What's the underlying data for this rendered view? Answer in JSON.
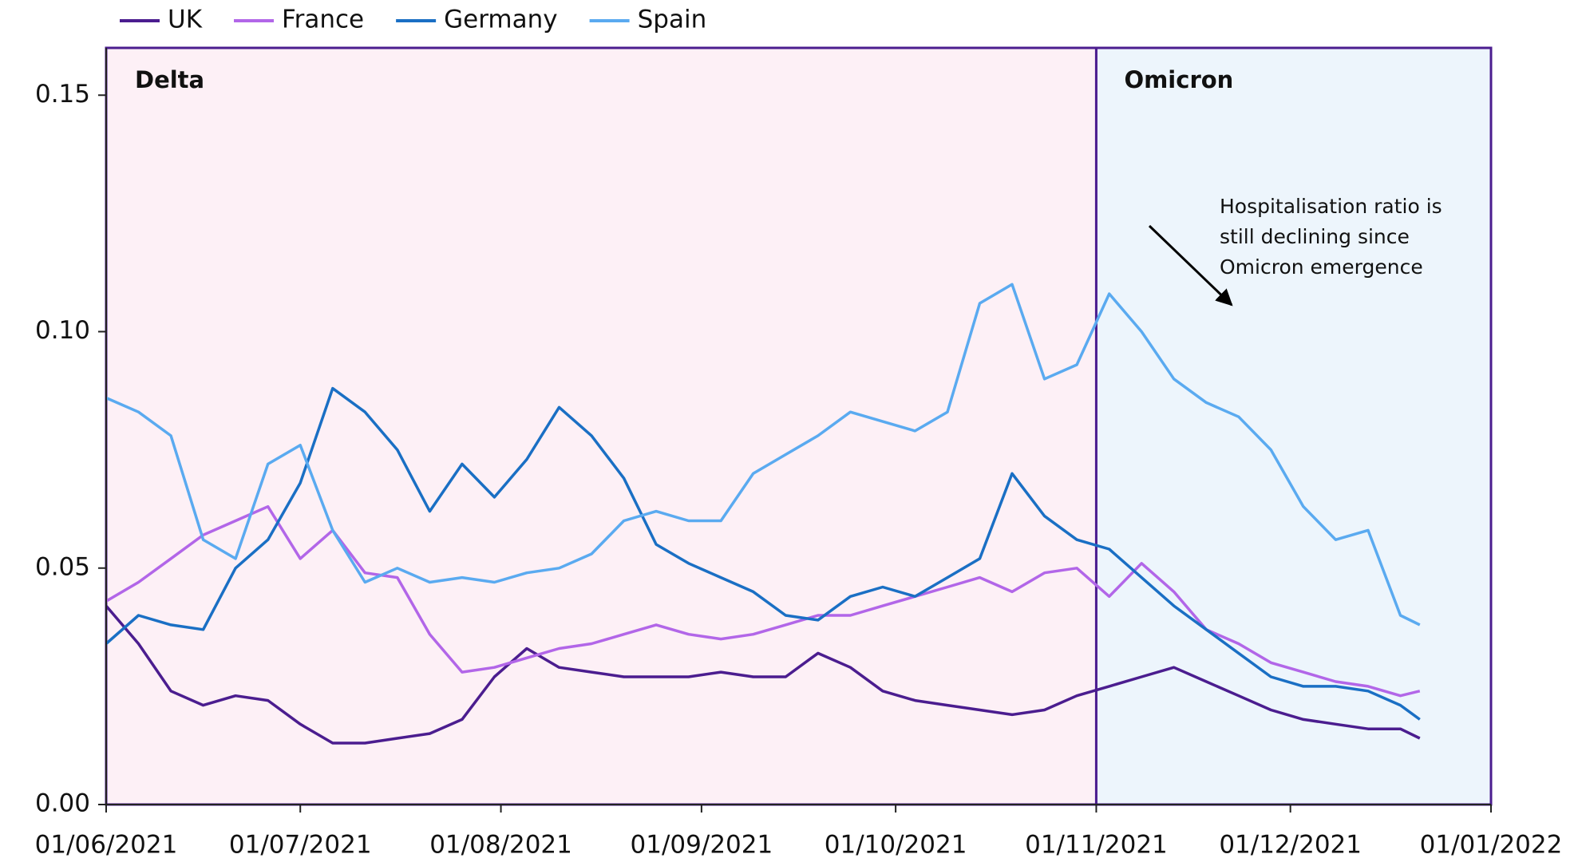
{
  "chart_data": {
    "type": "line",
    "x": [
      "2021-06-01",
      "2021-06-06",
      "2021-06-11",
      "2021-06-16",
      "2021-06-21",
      "2021-06-26",
      "2021-07-01",
      "2021-07-06",
      "2021-07-11",
      "2021-07-16",
      "2021-07-21",
      "2021-07-26",
      "2021-07-31",
      "2021-08-05",
      "2021-08-10",
      "2021-08-15",
      "2021-08-20",
      "2021-08-25",
      "2021-08-30",
      "2021-09-04",
      "2021-09-09",
      "2021-09-14",
      "2021-09-19",
      "2021-09-24",
      "2021-09-29",
      "2021-10-04",
      "2021-10-09",
      "2021-10-14",
      "2021-10-19",
      "2021-10-24",
      "2021-10-29",
      "2021-11-03",
      "2021-11-08",
      "2021-11-13",
      "2021-11-18",
      "2021-11-23",
      "2021-11-28",
      "2021-12-03",
      "2021-12-08",
      "2021-12-13",
      "2021-12-18",
      "2021-12-21"
    ],
    "series": [
      {
        "name": "UK",
        "color": "#4b1d8f",
        "values": [
          0.042,
          0.034,
          0.024,
          0.021,
          0.023,
          0.022,
          0.017,
          0.013,
          0.013,
          0.014,
          0.015,
          0.018,
          0.027,
          0.033,
          0.029,
          0.028,
          0.027,
          0.027,
          0.027,
          0.028,
          0.027,
          0.027,
          0.032,
          0.029,
          0.024,
          0.022,
          0.021,
          0.02,
          0.019,
          0.02,
          0.023,
          0.025,
          0.027,
          0.029,
          0.026,
          0.023,
          0.02,
          0.018,
          0.017,
          0.016,
          0.016,
          0.014
        ]
      },
      {
        "name": "France",
        "color": "#b266e8",
        "values": [
          0.043,
          0.047,
          0.052,
          0.057,
          0.06,
          0.063,
          0.052,
          0.058,
          0.049,
          0.048,
          0.036,
          0.028,
          0.029,
          0.031,
          0.033,
          0.034,
          0.036,
          0.038,
          0.036,
          0.035,
          0.036,
          0.038,
          0.04,
          0.04,
          0.042,
          0.044,
          0.046,
          0.048,
          0.045,
          0.049,
          0.05,
          0.044,
          0.051,
          0.045,
          0.037,
          0.034,
          0.03,
          0.028,
          0.026,
          0.025,
          0.023,
          0.024
        ]
      },
      {
        "name": "Germany",
        "color": "#1a6fc4",
        "values": [
          0.034,
          0.04,
          0.038,
          0.037,
          0.05,
          0.056,
          0.068,
          0.088,
          0.083,
          0.075,
          0.062,
          0.072,
          0.065,
          0.073,
          0.084,
          0.078,
          0.069,
          0.055,
          0.051,
          0.048,
          0.045,
          0.04,
          0.039,
          0.044,
          0.046,
          0.044,
          0.048,
          0.052,
          0.07,
          0.061,
          0.056,
          0.054,
          0.048,
          0.042,
          0.037,
          0.032,
          0.027,
          0.025,
          0.025,
          0.024,
          0.021,
          0.018
        ]
      },
      {
        "name": "Spain",
        "color": "#5aaaf0",
        "values": [
          0.086,
          0.083,
          0.078,
          0.056,
          0.052,
          0.072,
          0.076,
          0.058,
          0.047,
          0.05,
          0.047,
          0.048,
          0.047,
          0.049,
          0.05,
          0.053,
          0.06,
          0.062,
          0.06,
          0.06,
          0.07,
          0.074,
          0.078,
          0.083,
          0.081,
          0.079,
          0.083,
          0.106,
          0.11,
          0.09,
          0.093,
          0.108,
          0.1,
          0.09,
          0.085,
          0.082,
          0.075,
          0.063,
          0.056,
          0.058,
          0.04,
          0.038
        ]
      }
    ],
    "regions": [
      {
        "label": "Delta",
        "start": "2021-06-01",
        "end": "2021-11-01",
        "color": "#fdf0f6"
      },
      {
        "label": "Omicron",
        "start": "2021-11-01",
        "end": "2022-01-01",
        "color": "#edf5fc"
      }
    ],
    "annotation": [
      "Hospitalisation ratio is",
      "still declining since",
      "Omicron emergence"
    ],
    "xlim": [
      "2021-06-01",
      "2022-01-01"
    ],
    "xticks": [
      {
        "value": "2021-06-01",
        "label": "01/06/2021"
      },
      {
        "value": "2021-07-01",
        "label": "01/07/2021"
      },
      {
        "value": "2021-08-01",
        "label": "01/08/2021"
      },
      {
        "value": "2021-09-01",
        "label": "01/09/2021"
      },
      {
        "value": "2021-10-01",
        "label": "01/10/2021"
      },
      {
        "value": "2021-11-01",
        "label": "01/11/2021"
      },
      {
        "value": "2021-12-01",
        "label": "01/12/2021"
      },
      {
        "value": "2022-01-01",
        "label": "01/01/2022"
      }
    ],
    "ylim": [
      0,
      0.16
    ],
    "yticks": [
      {
        "value": 0,
        "label": "0.00"
      },
      0.05,
      {
        "value": 0.1,
        "label": "0.10"
      },
      0.15
    ],
    "legend": "top-left"
  }
}
